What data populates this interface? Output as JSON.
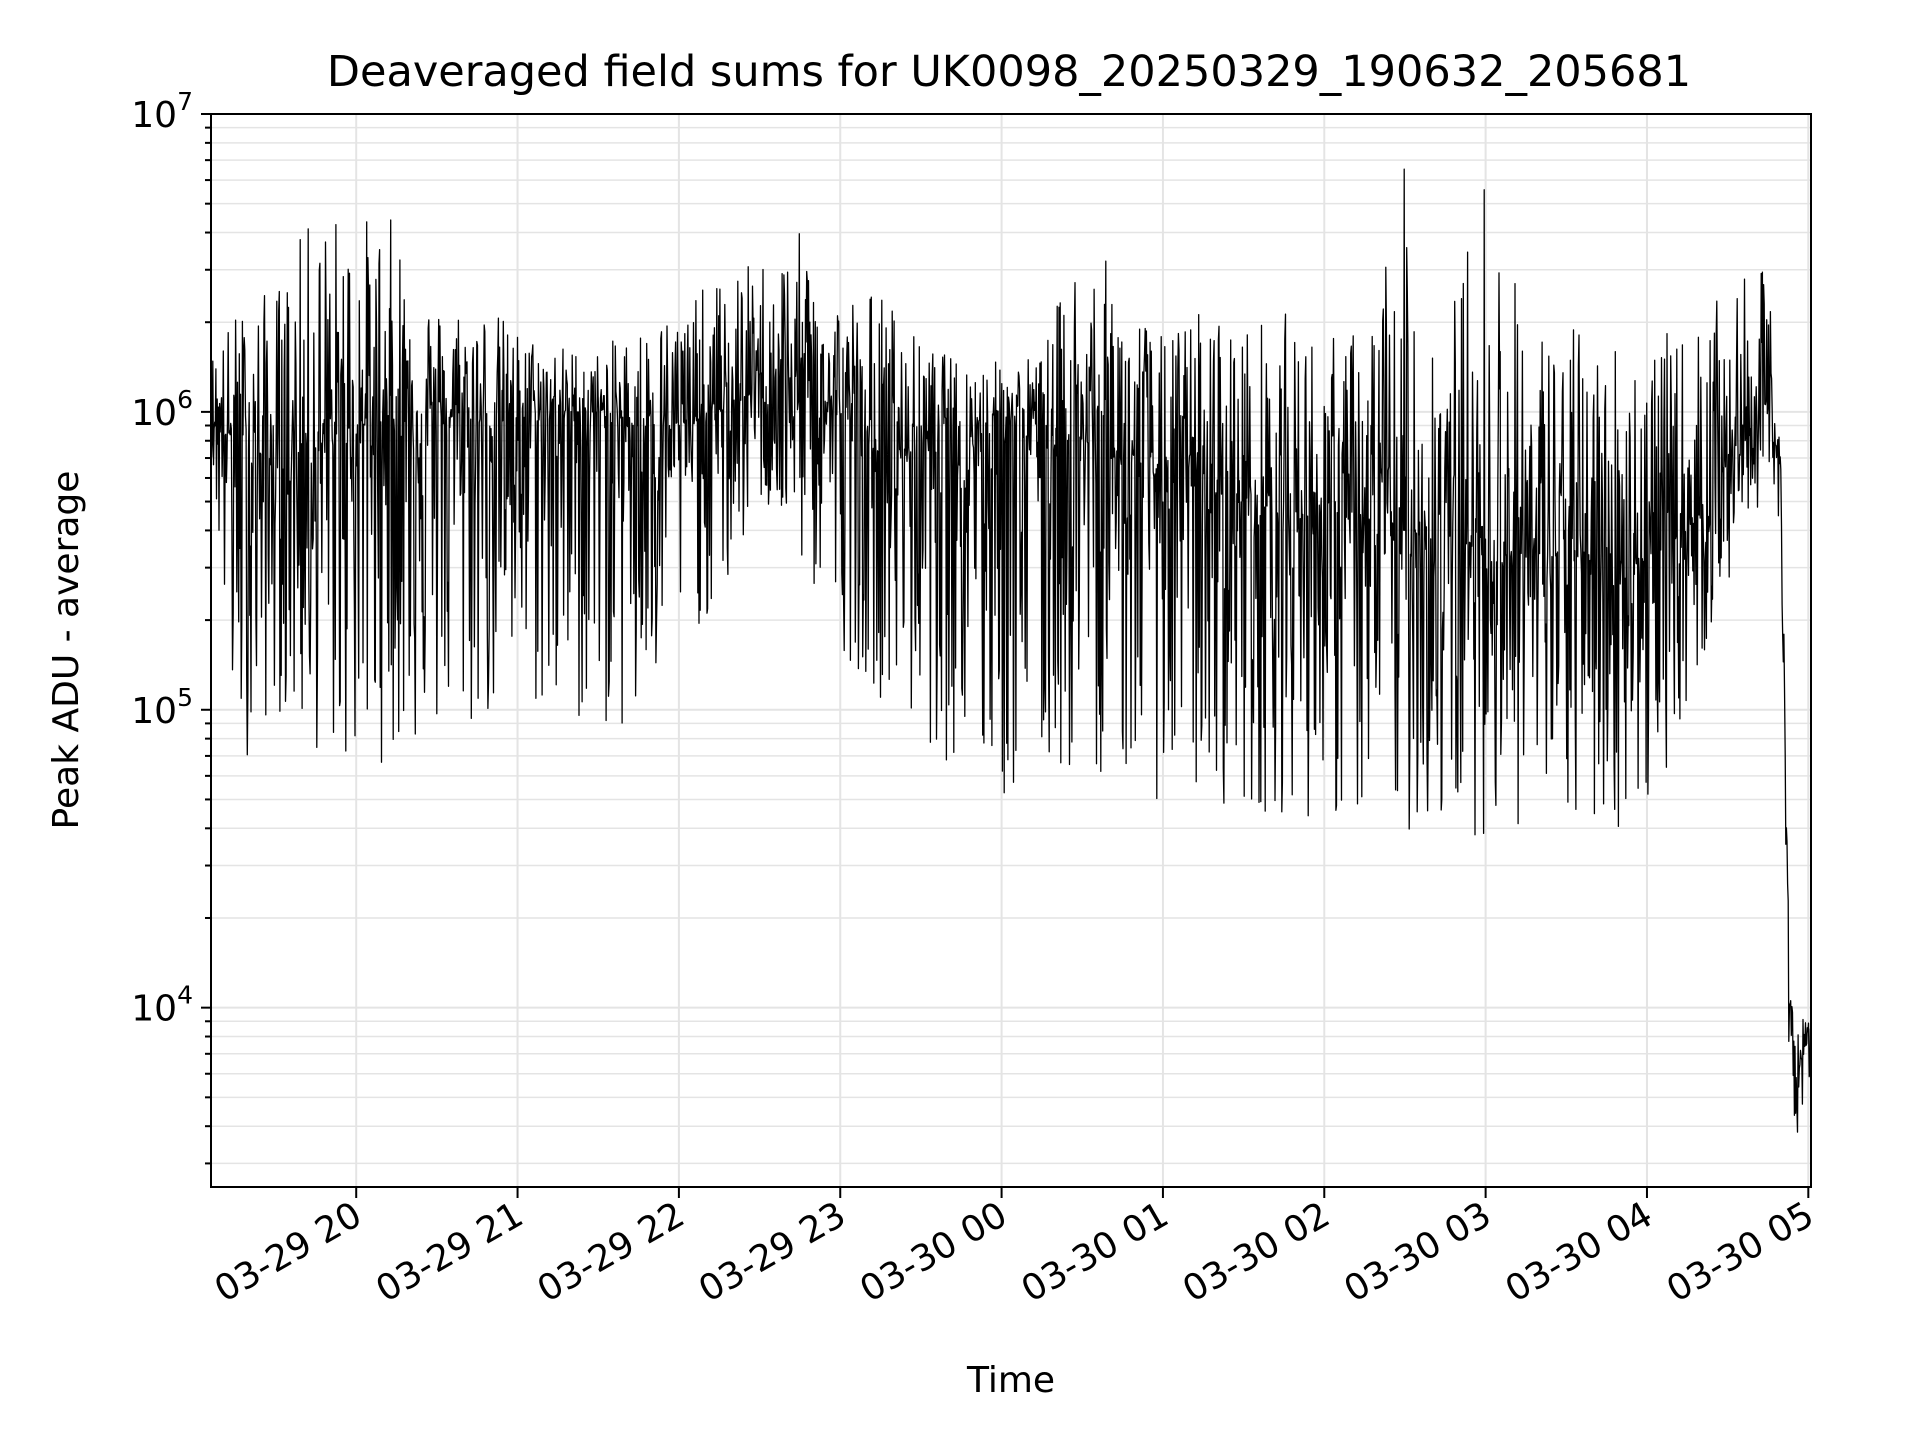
{
  "chart_data": {
    "type": "line",
    "title": "Deaveraged field sums for UK0098_20250329_190632_205681",
    "xlabel": "Time",
    "ylabel": "Peak ADU - average",
    "yscale": "log",
    "ylim": [
      2500,
      10000000
    ],
    "xlim": [
      "2025-03-29 19:06",
      "2025-03-30 05:01"
    ],
    "grid": true,
    "line_color": "#000000",
    "grid_color": "#e4e4e4",
    "x_ticks": [
      {
        "t": "2025-03-29 20:00",
        "label": "03-29 20"
      },
      {
        "t": "2025-03-29 21:00",
        "label": "03-29 21"
      },
      {
        "t": "2025-03-29 22:00",
        "label": "03-29 22"
      },
      {
        "t": "2025-03-29 23:00",
        "label": "03-29 23"
      },
      {
        "t": "2025-03-30 00:00",
        "label": "03-30 00"
      },
      {
        "t": "2025-03-30 01:00",
        "label": "03-30 01"
      },
      {
        "t": "2025-03-30 02:00",
        "label": "03-30 02"
      },
      {
        "t": "2025-03-30 03:00",
        "label": "03-30 03"
      },
      {
        "t": "2025-03-30 04:00",
        "label": "03-30 04"
      },
      {
        "t": "2025-03-30 05:00",
        "label": "03-30 05"
      }
    ],
    "y_ticks": [
      {
        "value": 10000,
        "base": "10",
        "exp": "4"
      },
      {
        "value": 100000,
        "base": "10",
        "exp": "5"
      },
      {
        "value": 1000000,
        "base": "10",
        "exp": "6"
      },
      {
        "value": 10000000,
        "base": "10",
        "exp": "7"
      }
    ],
    "series": [
      {
        "x": [
          "2025-03-29 19:06",
          "2025-03-29 19:15",
          "2025-03-29 19:30",
          "2025-03-29 19:45",
          "2025-03-29 20:00",
          "2025-03-29 20:15",
          "2025-03-29 20:30",
          "2025-03-29 20:45",
          "2025-03-29 21:00",
          "2025-03-29 21:15",
          "2025-03-29 21:30",
          "2025-03-29 21:45",
          "2025-03-29 22:00",
          "2025-03-29 22:15",
          "2025-03-29 22:30",
          "2025-03-29 22:45",
          "2025-03-29 23:00",
          "2025-03-29 23:15",
          "2025-03-29 23:30",
          "2025-03-29 23:45",
          "2025-03-30 00:00",
          "2025-03-30 00:15",
          "2025-03-30 00:30",
          "2025-03-30 00:45",
          "2025-03-30 01:00",
          "2025-03-30 01:15",
          "2025-03-30 01:30",
          "2025-03-30 01:45",
          "2025-03-30 02:00",
          "2025-03-30 02:15",
          "2025-03-30 02:30",
          "2025-03-30 02:45",
          "2025-03-30 03:00",
          "2025-03-30 03:15",
          "2025-03-30 03:30",
          "2025-03-30 03:45",
          "2025-03-30 04:00",
          "2025-03-30 04:15",
          "2025-03-30 04:30",
          "2025-03-30 04:45",
          "2025-03-30 04:50",
          "2025-03-30 04:53",
          "2025-03-30 04:56",
          "2025-03-30 05:01"
        ],
        "median": [
          1000000,
          800000,
          650000,
          750000,
          900000,
          950000,
          1000000,
          900000,
          950000,
          1000000,
          1000000,
          900000,
          900000,
          1000000,
          1200000,
          1200000,
          1000000,
          700000,
          800000,
          900000,
          900000,
          850000,
          800000,
          700000,
          600000,
          550000,
          500000,
          450000,
          450000,
          420000,
          400000,
          380000,
          350000,
          330000,
          330000,
          330000,
          320000,
          400000,
          700000,
          1100000,
          600000,
          10000,
          6000,
          8500
        ],
        "high": [
          1600000,
          2200000,
          2700000,
          4900000,
          4700000,
          4500000,
          2300000,
          2500000,
          1900000,
          1700000,
          1600000,
          2000000,
          2300000,
          2800000,
          3300000,
          4000000,
          2500000,
          2700000,
          1700000,
          1500000,
          1500000,
          1600000,
          4200000,
          2700000,
          1800000,
          2400000,
          2000000,
          2200000,
          1800000,
          2000000,
          6800000,
          1900000,
          7300000,
          2100000,
          2000000,
          1900000,
          1900000,
          1800000,
          2600000,
          3100000,
          800000,
          12000,
          9000,
          10000
        ],
        "low": [
          750000,
          60000,
          100000,
          70000,
          60000,
          70000,
          75000,
          80000,
          110000,
          80000,
          90000,
          70000,
          180000,
          200000,
          500000,
          300000,
          160000,
          110000,
          80000,
          60000,
          45000,
          55000,
          60000,
          60000,
          48000,
          50000,
          45000,
          45000,
          42000,
          40000,
          38000,
          38000,
          38000,
          40000,
          38000,
          38000,
          42000,
          100000,
          250000,
          600000,
          250000,
          5500,
          3700,
          6000
        ]
      }
    ]
  }
}
